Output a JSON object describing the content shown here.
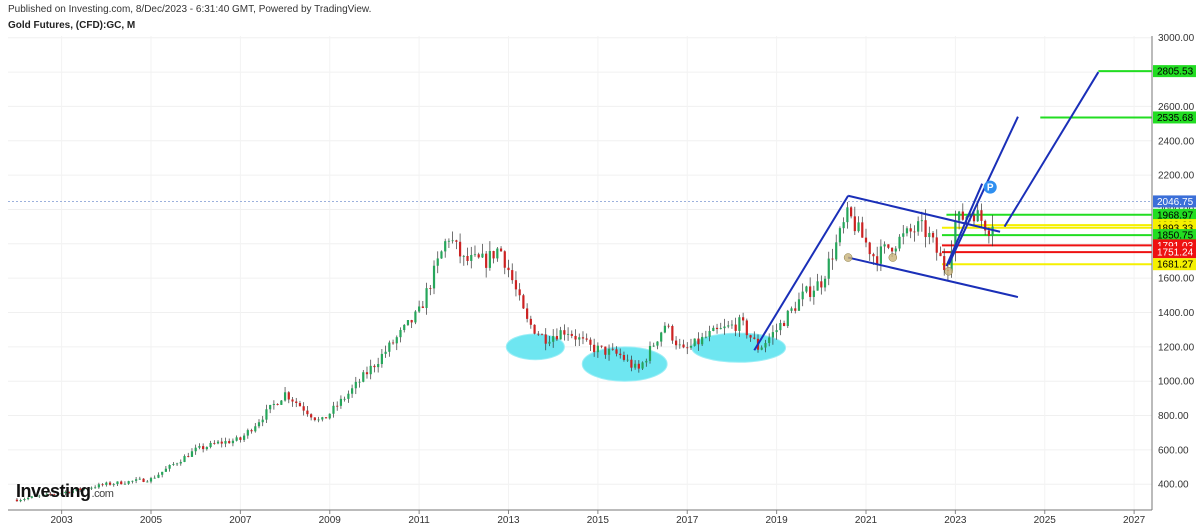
{
  "header": {
    "published": "Published on Investing.com, 8/Dec/2023 - 6:31:40 GMT, Powered by TradingView.",
    "symbol": "Gold Futures, (CFD):GC, M"
  },
  "logo": {
    "text": "Investing",
    "suffix": ".com"
  },
  "colors": {
    "bull": "#26a65b",
    "bear": "#cc2222",
    "channel": "#1a2fb8",
    "ellipse": "#5ee3f0",
    "green_level": "#22dd22",
    "yellow_level": "#f5f000",
    "red_level": "#ee1111",
    "current_price": "#3b6fd8",
    "marker": "#2f8ff0"
  },
  "chart_data": {
    "type": "candlestick",
    "x_ticks": [
      "2003",
      "2005",
      "2007",
      "2009",
      "2011",
      "2013",
      "2015",
      "2017",
      "2019",
      "2021",
      "2023",
      "2025",
      "2027"
    ],
    "y_ticks": [
      "3000.00",
      "2800.00",
      "2600.00",
      "2400.00",
      "2200.00",
      "2000.00",
      "1800.00",
      "1600.00",
      "1400.00",
      "1200.00",
      "1000.00",
      "800.00",
      "600.00",
      "400.00"
    ],
    "ylim": [
      250,
      3010
    ],
    "xlim": [
      2001.8,
      2027.4
    ],
    "price_path": [
      [
        2002.0,
        310
      ],
      [
        2003.0,
        350
      ],
      [
        2004.0,
        400
      ],
      [
        2005.0,
        430
      ],
      [
        2006.0,
        600
      ],
      [
        2006.5,
        640
      ],
      [
        2007.0,
        660
      ],
      [
        2008.0,
        930
      ],
      [
        2008.8,
        760
      ],
      [
        2009.5,
        950
      ],
      [
        2010.0,
        1100
      ],
      [
        2010.5,
        1250
      ],
      [
        2011.0,
        1400
      ],
      [
        2011.65,
        1850
      ],
      [
        2012.0,
        1700
      ],
      [
        2012.5,
        1700
      ],
      [
        2012.8,
        1780
      ],
      [
        2013.0,
        1650
      ],
      [
        2013.4,
        1350
      ],
      [
        2013.8,
        1250
      ],
      [
        2014.3,
        1300
      ],
      [
        2014.8,
        1200
      ],
      [
        2015.5,
        1150
      ],
      [
        2015.9,
        1060
      ],
      [
        2016.5,
        1330
      ],
      [
        2016.9,
        1170
      ],
      [
        2017.5,
        1270
      ],
      [
        2018.2,
        1340
      ],
      [
        2018.6,
        1190
      ],
      [
        2019.0,
        1300
      ],
      [
        2019.6,
        1500
      ],
      [
        2020.0,
        1580
      ],
      [
        2020.6,
        1970
      ],
      [
        2021.2,
        1720
      ],
      [
        2021.6,
        1800
      ],
      [
        2022.2,
        1900
      ],
      [
        2022.4,
        1850
      ],
      [
        2022.8,
        1640
      ],
      [
        2023.0,
        1930
      ],
      [
        2023.4,
        1990
      ],
      [
        2023.8,
        1880
      ],
      [
        2023.9,
        2046
      ]
    ],
    "current_price": "2046.75",
    "levels": [
      {
        "label": "2805.53",
        "value": 2805.53,
        "color": "green",
        "x_start": 2026.2
      },
      {
        "label": "2535.68",
        "value": 2535.68,
        "color": "green",
        "x_start": 2024.9
      },
      {
        "label": "1968.97",
        "value": 1968.97,
        "color": "green",
        "x_start": 2022.8
      },
      {
        "label": "1908.89",
        "value": 1908.89,
        "color": "yellow",
        "x_start": 2023.4
      },
      {
        "label": "1893.33",
        "value": 1893.33,
        "color": "yellow",
        "x_start": 2022.7
      },
      {
        "label": "1850.75",
        "value": 1850.75,
        "color": "green",
        "x_start": 2022.7
      },
      {
        "label": "1791.03",
        "value": 1791.03,
        "color": "red",
        "x_start": 2022.7
      },
      {
        "label": "1751.24",
        "value": 1751.24,
        "color": "red",
        "x_start": 2022.7
      },
      {
        "label": "1681.27",
        "value": 1681.27,
        "color": "yellow",
        "x_start": 2022.7
      }
    ],
    "trend_lines": [
      {
        "from": [
          2018.5,
          1180
        ],
        "to": [
          2020.6,
          2080
        ]
      },
      {
        "from": [
          2020.6,
          2080
        ],
        "to": [
          2024.0,
          1870
        ]
      },
      {
        "from": [
          2020.6,
          1720
        ],
        "to": [
          2024.4,
          1490
        ]
      },
      {
        "from": [
          2022.8,
          1670
        ],
        "to": [
          2023.6,
          2150
        ]
      },
      {
        "from": [
          2022.85,
          1680
        ],
        "to": [
          2024.4,
          2540
        ]
      },
      {
        "from": [
          2024.1,
          1900
        ],
        "to": [
          2026.2,
          2800
        ]
      }
    ],
    "ellipses": [
      {
        "cx": 2013.6,
        "cy": 1200,
        "rx": 0.65,
        "ry": 75
      },
      {
        "cx": 2015.6,
        "cy": 1100,
        "rx": 0.95,
        "ry": 100
      },
      {
        "cx": 2018.15,
        "cy": 1195,
        "rx": 1.05,
        "ry": 85
      }
    ],
    "markers": [
      {
        "x": 2023.78,
        "y": 2130,
        "label": "P"
      }
    ]
  }
}
